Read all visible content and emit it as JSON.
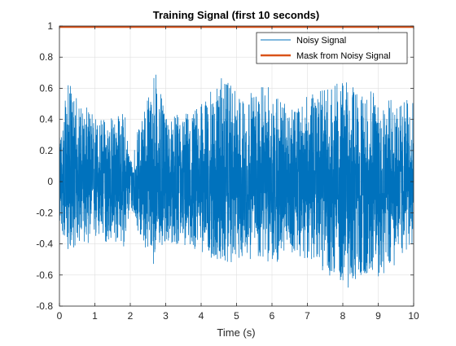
{
  "chart_data": {
    "type": "line",
    "title": "Training Signal (first 10 seconds)",
    "xlabel": "Time (s)",
    "ylabel": "",
    "xlim": [
      0,
      10
    ],
    "ylim": [
      -0.8,
      1
    ],
    "xticks": [
      0,
      1,
      2,
      3,
      4,
      5,
      6,
      7,
      8,
      9,
      10
    ],
    "yticks": [
      -0.8,
      -0.6,
      -0.4,
      -0.2,
      0,
      0.2,
      0.4,
      0.6,
      0.8,
      1
    ],
    "xtick_labels": [
      "0",
      "1",
      "2",
      "3",
      "4",
      "5",
      "6",
      "7",
      "8",
      "9",
      "10"
    ],
    "ytick_labels": [
      "-0.8",
      "-0.6",
      "-0.4",
      "-0.2",
      "0",
      "0.2",
      "0.4",
      "0.6",
      "0.8",
      "1"
    ],
    "grid": true,
    "legend_position": "top-right",
    "series": [
      {
        "name": "Noisy Signal",
        "color": "#0072BD",
        "kind": "dense-noise",
        "envelope_t": [
          0,
          0.25,
          0.6,
          1.2,
          1.85,
          2.0,
          2.35,
          2.7,
          3.0,
          3.5,
          4.0,
          4.6,
          5.1,
          5.6,
          6.05,
          6.5,
          7.0,
          7.6,
          8.2,
          8.55,
          9.0,
          9.5,
          10
        ],
        "envelope_upper": [
          0.28,
          0.65,
          0.5,
          0.42,
          0.45,
          0.15,
          0.45,
          0.76,
          0.4,
          0.45,
          0.5,
          0.68,
          0.55,
          0.6,
          0.63,
          0.45,
          0.55,
          0.62,
          0.66,
          0.55,
          0.62,
          0.5,
          0.55
        ],
        "envelope_lower": [
          -0.3,
          -0.45,
          -0.4,
          -0.4,
          -0.42,
          -0.18,
          -0.4,
          -0.55,
          -0.4,
          -0.42,
          -0.45,
          -0.55,
          -0.5,
          -0.5,
          -0.55,
          -0.45,
          -0.5,
          -0.6,
          -0.7,
          -0.6,
          -0.62,
          -0.55,
          -0.4
        ]
      },
      {
        "name": "Mask from Noisy Signal",
        "color": "#D95319",
        "x": [
          0,
          10
        ],
        "values": [
          1,
          1
        ]
      }
    ]
  }
}
